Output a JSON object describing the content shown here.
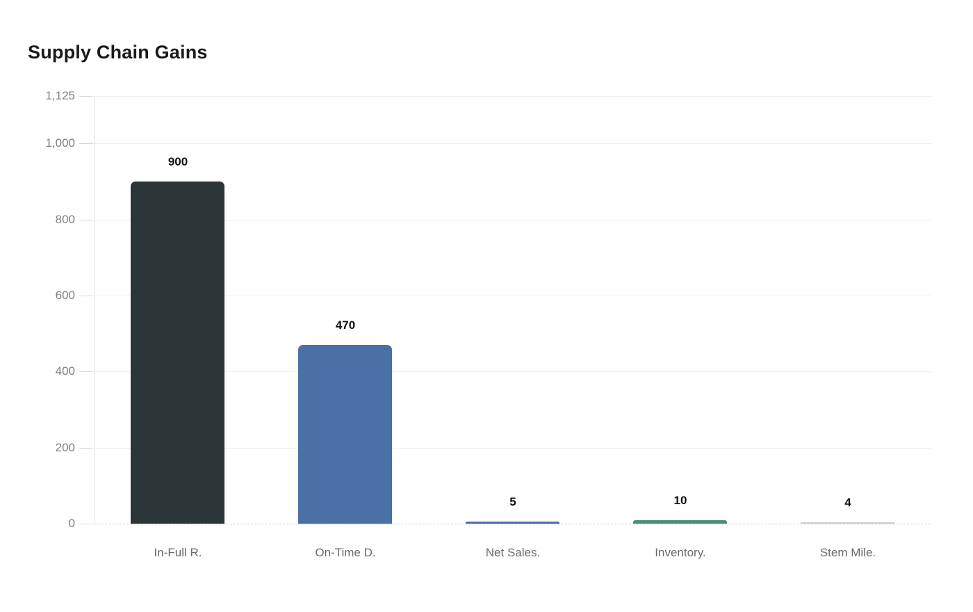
{
  "page": {
    "background": "#ffffff"
  },
  "chart_data": {
    "type": "bar",
    "title": "Supply Chain Gains",
    "categories": [
      "In-Full R.",
      "On-Time D.",
      "Net Sales.",
      "Inventory.",
      "Stem Mile."
    ],
    "values": [
      900,
      470,
      5,
      10,
      4
    ],
    "value_labels": [
      "900",
      "470",
      "5",
      "10",
      "4"
    ],
    "bar_colors": [
      "#2c3639",
      "#4a70a8",
      "#4a70a8",
      "#4e8e78",
      "#cfcfcf"
    ],
    "xlabel": "",
    "ylabel": "",
    "ylim": [
      0,
      1125
    ],
    "y_ticks": [
      {
        "value": 0,
        "label": "0"
      },
      {
        "value": 200,
        "label": "200"
      },
      {
        "value": 400,
        "label": "400"
      },
      {
        "value": 600,
        "label": "600"
      },
      {
        "value": 800,
        "label": "800"
      },
      {
        "value": 1000,
        "label": "1,000"
      },
      {
        "value": 1125,
        "label": "1,125"
      }
    ],
    "grid": true,
    "legend": "none",
    "colors": {
      "title": "#1a1a1a",
      "grid_line": "#ededed",
      "axis_line": "#e4e4e4",
      "baseline": "#c6c6c6",
      "tick_mark": "#d6d6d6",
      "y_tick_label": "#7e7e7e",
      "x_tick_label": "#6b6b6b",
      "value_label": "#111111"
    }
  }
}
